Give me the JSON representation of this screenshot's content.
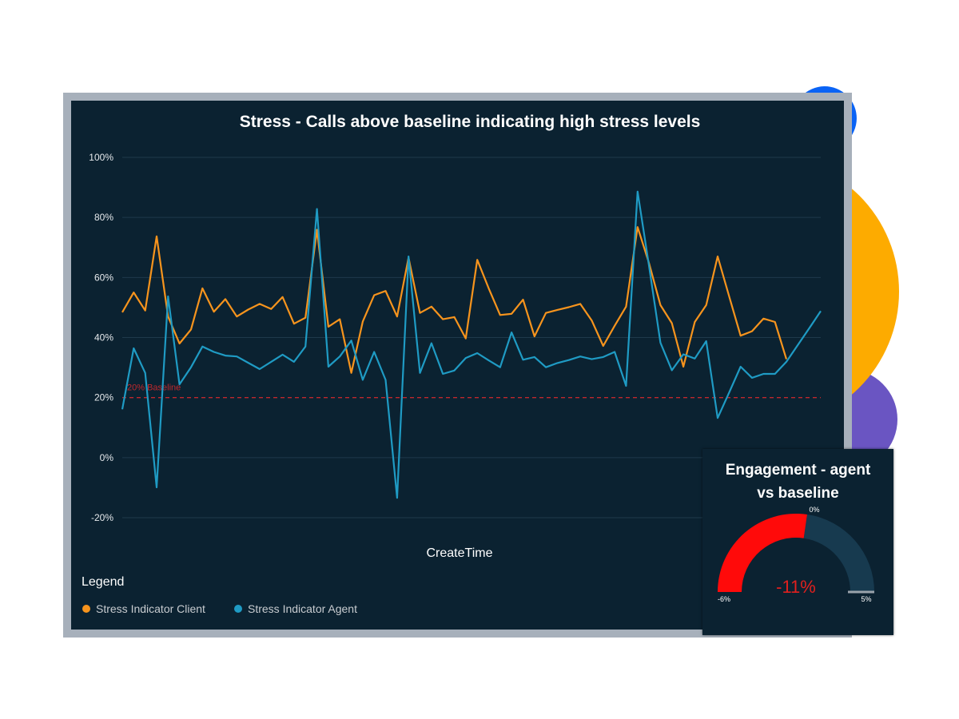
{
  "chart_data": {
    "type": "line",
    "title": "Stress - Calls above baseline indicating high stress levels",
    "xlabel": "CreateTime",
    "ylabel": "",
    "ylim": [
      -20,
      100
    ],
    "yticks": [
      "100%",
      "80%",
      "60%",
      "40%",
      "20%",
      "0%",
      "-20%"
    ],
    "ytick_values": [
      100,
      80,
      60,
      40,
      20,
      0,
      -20
    ],
    "grid": true,
    "baseline": {
      "value": 20,
      "label": "20% Baseline",
      "color": "#c0282d"
    },
    "legend": {
      "title": "Legend",
      "placement": "bottom-left"
    },
    "series": [
      {
        "name": "Stress Indicator Client",
        "color": "#f7941d",
        "values": [
          48.4,
          55,
          49,
          73.7,
          47,
          38,
          42.7,
          56.4,
          48.6,
          52.8,
          47,
          49.3,
          51.2,
          49.5,
          53.5,
          44.6,
          46.6,
          75.9,
          43.6,
          46.1,
          28.2,
          45.3,
          54.1,
          55.5,
          47,
          66.6,
          48.2,
          50.3,
          46.1,
          46.8,
          39.7,
          65.9,
          56.4,
          47.5,
          47.9,
          52.6,
          40.4,
          48.2,
          49.2,
          50.1,
          51.2,
          45.7,
          37.2,
          43.9,
          50.3,
          76.8,
          64.8,
          50.8,
          44.8,
          30.3,
          45.2,
          50.8,
          67,
          53.7,
          40.6,
          42.1,
          46.3,
          45.2,
          32.8
        ]
      },
      {
        "name": "Stress Indicator Agent",
        "color": "#1f9bc4",
        "values": [
          16.1,
          36.4,
          28.2,
          -9.9,
          53.7,
          24.4,
          30.1,
          37,
          35.2,
          34,
          33.7,
          31.6,
          29.5,
          31.9,
          34.3,
          31.9,
          37,
          82.8,
          30.3,
          33.7,
          39,
          25.9,
          35.2,
          25.9,
          -13.4,
          67,
          28.2,
          38.1,
          27.9,
          29,
          33.2,
          34.8,
          32.4,
          30.1,
          41.7,
          32.6,
          33.5,
          30.1,
          31.5,
          32.5,
          33.7,
          32.8,
          33.5,
          35.2,
          23.9,
          88.6,
          63.9,
          38.3,
          29.1,
          34.4,
          33,
          38.8,
          13.2,
          21.7,
          30.3,
          26.6,
          27.9,
          27.9,
          31.9,
          37.5,
          43.1,
          48.8
        ]
      }
    ]
  },
  "gauge": {
    "title": "Engagement - agent vs baseline",
    "min": -6,
    "max": 5,
    "target": 0,
    "min_label": "-6%",
    "max_label": "5%",
    "target_label": "0%",
    "value_label": "-11%",
    "value_color": "#e0201e",
    "fill_color": "#ff0a0a",
    "track_color": "#173a4f"
  }
}
